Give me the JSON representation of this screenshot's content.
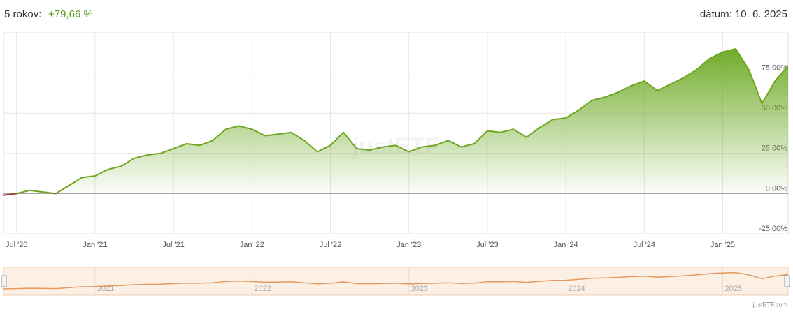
{
  "header": {
    "period_label": "5 rokov:",
    "performance": "+79,66 %",
    "date": "dátum: 10. 6. 2025"
  },
  "chart_data": {
    "type": "line",
    "x": [
      "2020-06",
      "2020-07",
      "2020-08",
      "2020-09",
      "2020-10",
      "2020-11",
      "2020-12",
      "2021-01",
      "2021-02",
      "2021-03",
      "2021-04",
      "2021-05",
      "2021-06",
      "2021-07",
      "2021-08",
      "2021-09",
      "2021-10",
      "2021-11",
      "2021-12",
      "2022-01",
      "2022-02",
      "2022-03",
      "2022-04",
      "2022-05",
      "2022-06",
      "2022-07",
      "2022-08",
      "2022-09",
      "2022-10",
      "2022-11",
      "2022-12",
      "2023-01",
      "2023-02",
      "2023-03",
      "2023-04",
      "2023-05",
      "2023-06",
      "2023-07",
      "2023-08",
      "2023-09",
      "2023-10",
      "2023-11",
      "2023-12",
      "2024-01",
      "2024-02",
      "2024-03",
      "2024-04",
      "2024-05",
      "2024-06",
      "2024-07",
      "2024-08",
      "2024-09",
      "2024-10",
      "2024-11",
      "2024-12",
      "2025-01",
      "2025-02",
      "2025-03",
      "2025-04",
      "2025-05",
      "2025-06"
    ],
    "values": [
      -1,
      0,
      2,
      1,
      0,
      5,
      10,
      11,
      15,
      17,
      22,
      24,
      25,
      28,
      31,
      30,
      33,
      40,
      42,
      40,
      36,
      37,
      38,
      33,
      26,
      30,
      38,
      28,
      27,
      29,
      30,
      26,
      29,
      30,
      33,
      29,
      31,
      39,
      38,
      40,
      35,
      41,
      46,
      47,
      52,
      58,
      60,
      63,
      67,
      70,
      64,
      68,
      72,
      77,
      84,
      88,
      90,
      77,
      56,
      70,
      79.66
    ],
    "color": "#6fa51f",
    "negative_color": "#b52a2a",
    "grid": true,
    "xlim": [
      "2020-06",
      "2025-06"
    ],
    "xticks": [
      {
        "value": "2020-07",
        "label": "Jul '20"
      },
      {
        "value": "2021-01",
        "label": "Jan '21"
      },
      {
        "value": "2021-07",
        "label": "Jul '21"
      },
      {
        "value": "2022-01",
        "label": "Jan '22"
      },
      {
        "value": "2022-07",
        "label": "Jul '22"
      },
      {
        "value": "2023-01",
        "label": "Jan '23"
      },
      {
        "value": "2023-07",
        "label": "Jul '23"
      },
      {
        "value": "2024-01",
        "label": "Jan '24"
      },
      {
        "value": "2024-07",
        "label": "Jul '24"
      },
      {
        "value": "2025-01",
        "label": "Jan '25"
      }
    ],
    "ylim": [
      -25,
      100
    ],
    "yticks": [
      {
        "value": -25,
        "label": "-25.00%"
      },
      {
        "value": 0,
        "label": "0.00%"
      },
      {
        "value": 25,
        "label": "25.00%"
      },
      {
        "value": 50,
        "label": "50.00%"
      },
      {
        "value": 75,
        "label": "75.00%"
      }
    ],
    "watermark": "justETF",
    "navigator": {
      "color": "#e39a5f",
      "ticks": [
        {
          "value": "2021-01",
          "label": "2021"
        },
        {
          "value": "2022-01",
          "label": "2022"
        },
        {
          "value": "2023-01",
          "label": "2023"
        },
        {
          "value": "2024-01",
          "label": "2024"
        },
        {
          "value": "2025-01",
          "label": "2025"
        }
      ]
    }
  },
  "footer": {
    "credit": "justETF.com"
  }
}
